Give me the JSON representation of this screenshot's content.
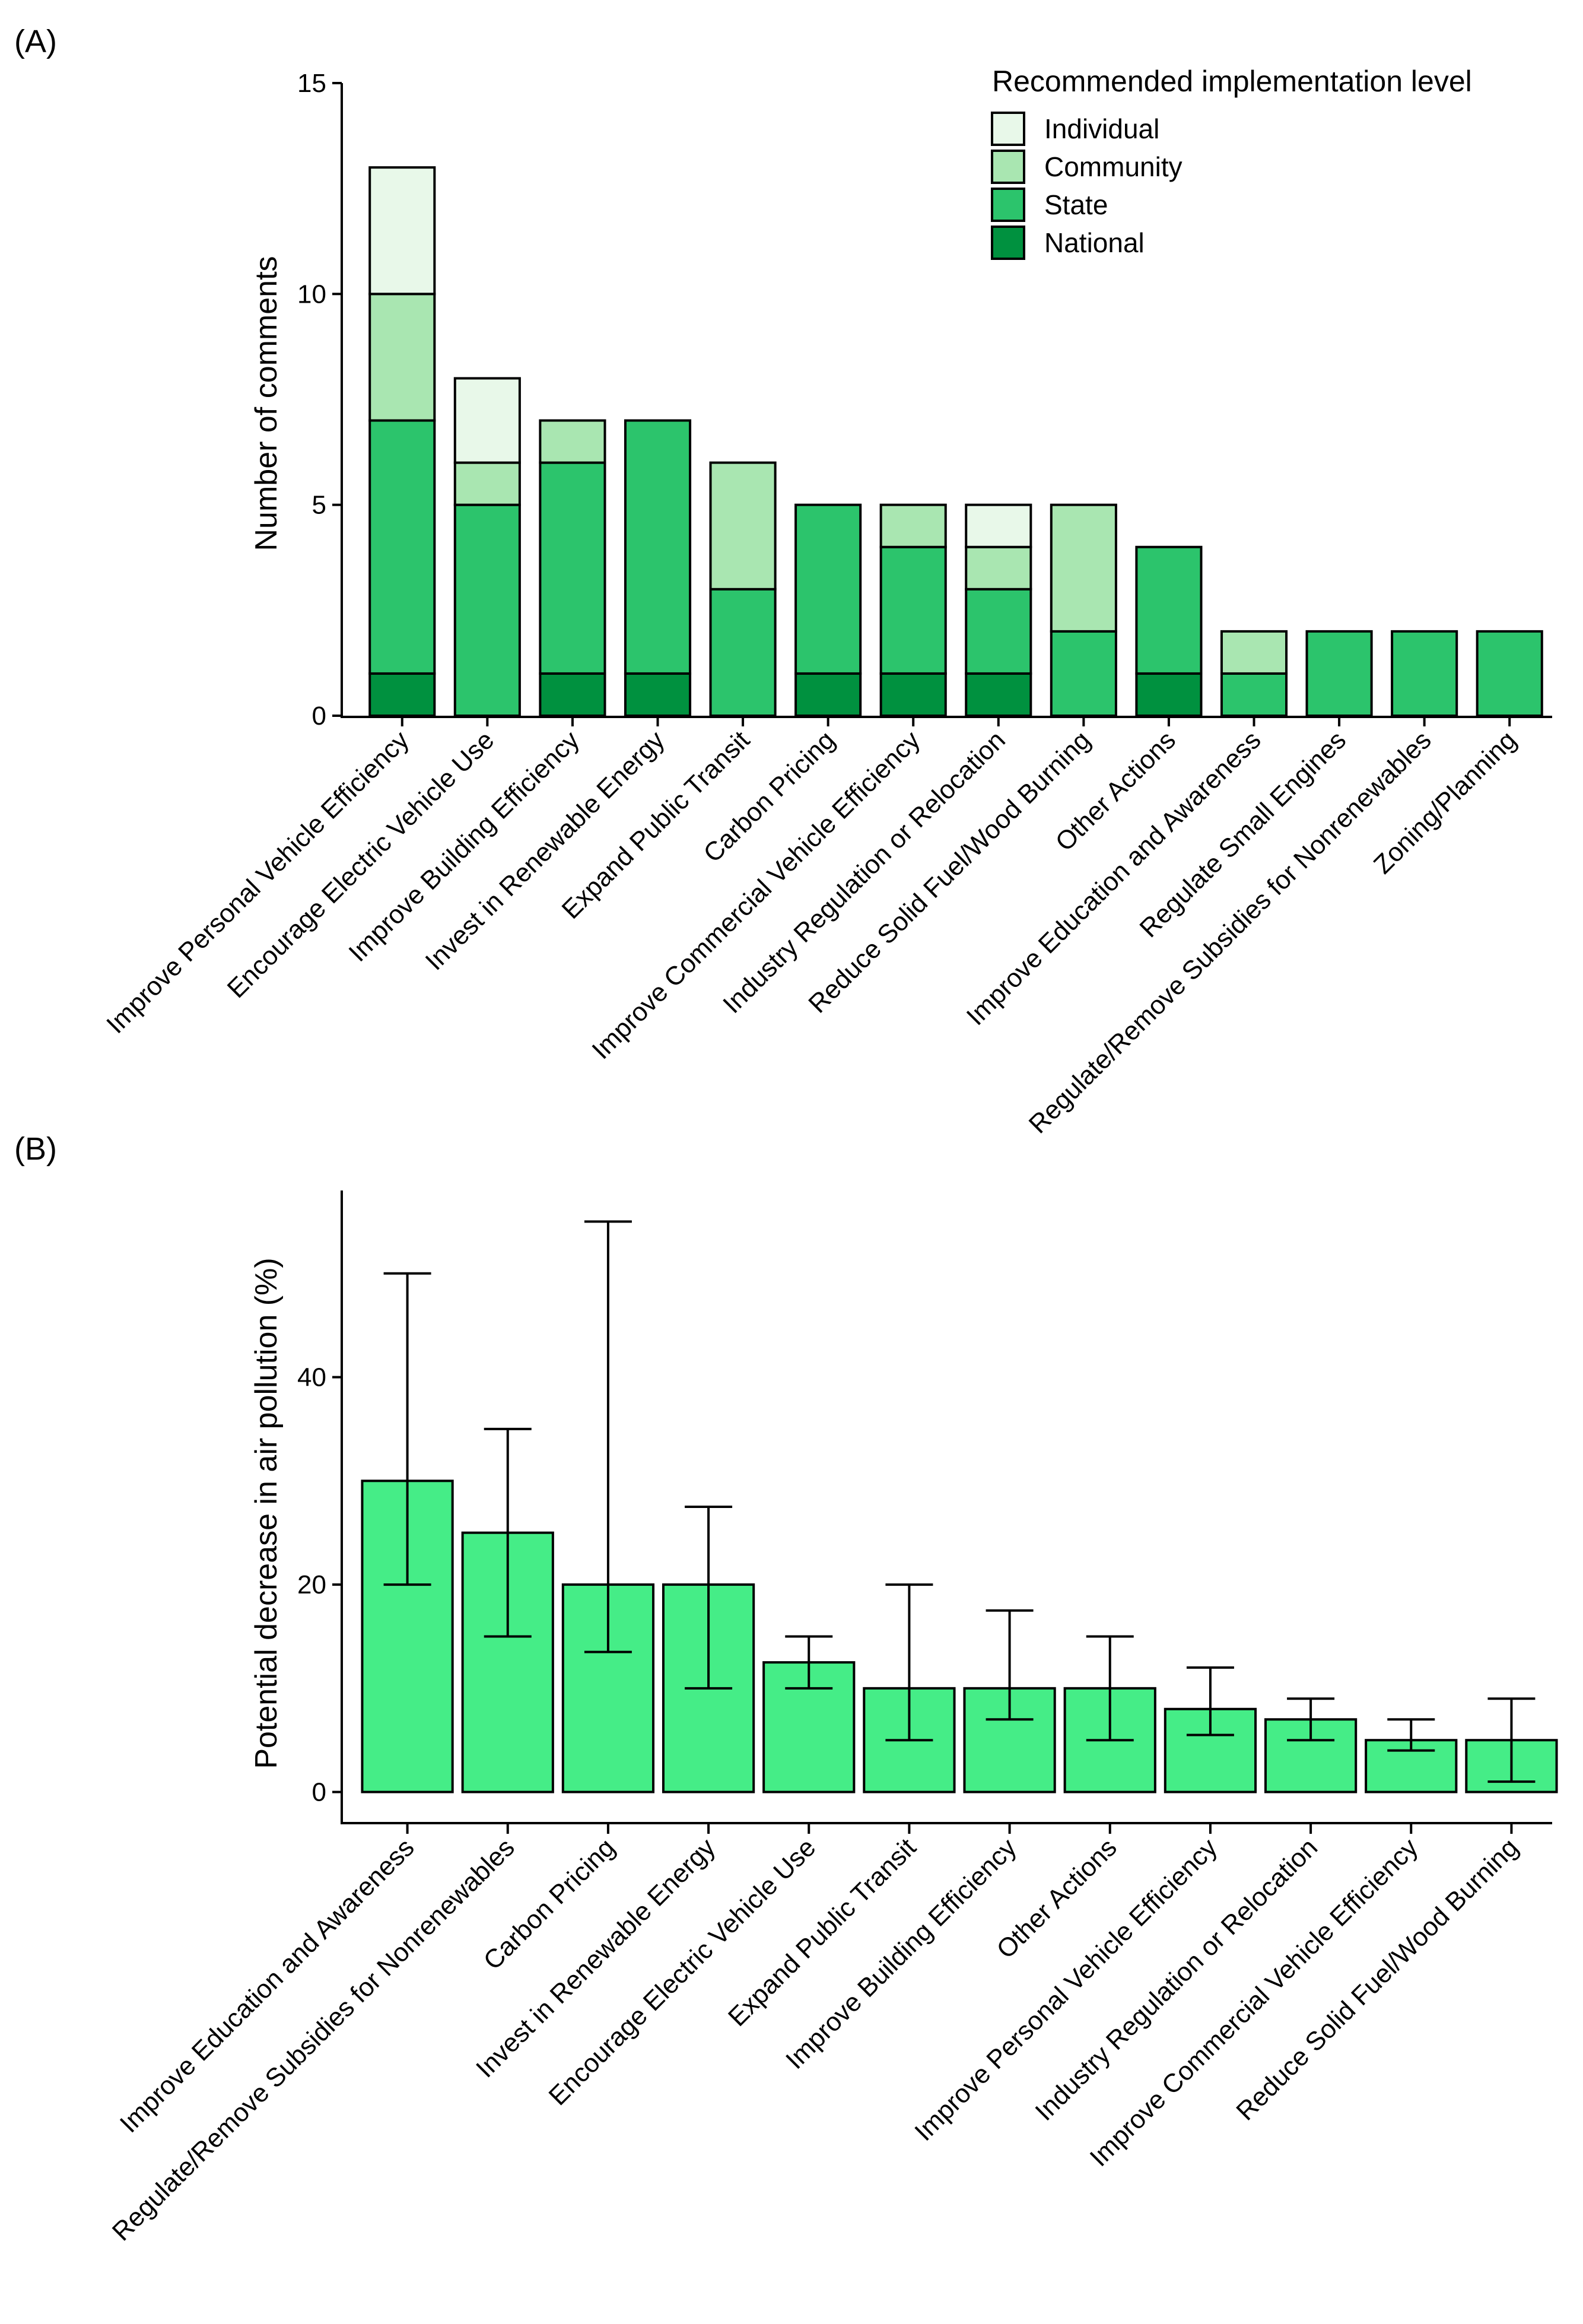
{
  "chart_data": [
    {
      "panel": "A",
      "panel_label": "(A)",
      "type": "bar",
      "stacked": true,
      "title": "",
      "xlabel": "",
      "ylabel": "Number of comments",
      "ylim": [
        0,
        15
      ],
      "yticks": [
        0,
        5,
        10,
        15
      ],
      "legend": {
        "title": "Recommended implementation level",
        "position": "top-right",
        "entries": [
          "Individual",
          "Community",
          "State",
          "National"
        ]
      },
      "colors": {
        "National": "#00913f",
        "State": "#2cc46c",
        "Community": "#a9e6b1",
        "Individual": "#e8f8e9"
      },
      "categories": [
        "Improve Personal Vehicle Efficiency",
        "Encourage Electric Vehicle Use",
        "Improve Building Efficiency",
        "Invest in Renewable Energy",
        "Expand Public Transit",
        "Carbon Pricing",
        "Improve Commercial Vehicle Efficiency",
        "Industry Regulation or Relocation",
        "Reduce Solid Fuel/Wood Burning",
        "Other Actions",
        "Improve Education and Awareness",
        "Regulate Small Engines",
        "Regulate/Remove Subsidies for Nonrenewables",
        "Zoning/Planning"
      ],
      "series": [
        {
          "name": "National",
          "values": [
            1,
            0,
            1,
            1,
            0,
            1,
            1,
            1,
            0,
            1,
            0,
            0,
            0,
            0
          ]
        },
        {
          "name": "State",
          "values": [
            6,
            5,
            5,
            6,
            3,
            4,
            3,
            2,
            2,
            3,
            1,
            2,
            2,
            2
          ]
        },
        {
          "name": "Community",
          "values": [
            3,
            1,
            1,
            0,
            3,
            0,
            1,
            1,
            3,
            0,
            1,
            0,
            0,
            0
          ]
        },
        {
          "name": "Individual",
          "values": [
            3,
            2,
            0,
            0,
            0,
            0,
            0,
            1,
            0,
            0,
            0,
            0,
            0,
            0
          ]
        }
      ]
    },
    {
      "panel": "B",
      "panel_label": "(B)",
      "type": "bar",
      "title": "",
      "xlabel": "",
      "ylabel": "Potential decrease in air pollution (%)",
      "ylim": [
        -3,
        58
      ],
      "yticks": [
        0,
        20,
        40
      ],
      "bar_color": "#45ed87",
      "categories": [
        "Improve Education and Awareness",
        "Regulate/Remove Subsidies for Nonrenewables",
        "Carbon Pricing",
        "Invest in Renewable Energy",
        "Encourage Electric Vehicle Use",
        "Expand Public Transit",
        "Improve Building Efficiency",
        "Other Actions",
        "Improve Personal Vehicle Efficiency",
        "Industry Regulation or Relocation",
        "Improve Commercial Vehicle Efficiency",
        "Reduce Solid Fuel/Wood Burning"
      ],
      "values": [
        30,
        25,
        20,
        20,
        12.5,
        10,
        10,
        10,
        8,
        7,
        5,
        5
      ],
      "error_low": [
        20,
        15,
        13.5,
        10,
        10,
        5,
        7,
        5,
        5.5,
        5,
        4,
        1
      ],
      "error_high": [
        50,
        35,
        55,
        27.5,
        15,
        20,
        17.5,
        15,
        12,
        9,
        7,
        9
      ]
    }
  ]
}
